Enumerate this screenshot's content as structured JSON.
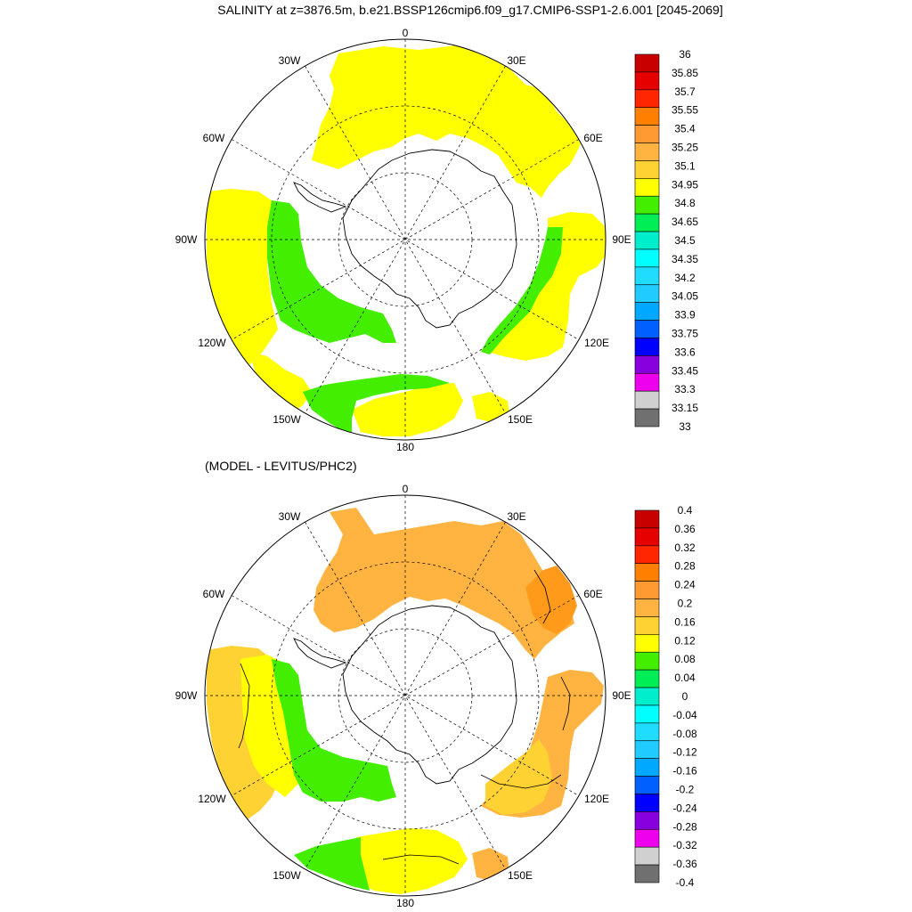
{
  "title": "SALINITY at z=3876.5m, b.e21.BSSP126cmip6.f09_g17.CMIP6-SSP1-2.6.001 [2045-2069]",
  "subtitle": "(MODEL - LEVITUS/PHC2)",
  "longitude_labels": [
    "0",
    "30E",
    "60E",
    "90E",
    "120E",
    "150E",
    "180",
    "150W",
    "120W",
    "90W",
    "60W",
    "30W"
  ],
  "colors": {
    "fill_yellow": "#ffff00",
    "fill_light_orange": "#ffb340",
    "fill_orange": "#ff9a1a",
    "fill_green": "#44ee00",
    "fill_light_yellow": "#ffd233",
    "land_outline": "#000000",
    "grid": "#000000"
  },
  "maps": [
    {
      "name": "salinity",
      "colorbar": {
        "labels": [
          "36",
          "35.85",
          "35.7",
          "35.55",
          "35.4",
          "35.25",
          "35.1",
          "34.95",
          "34.8",
          "34.65",
          "34.5",
          "34.35",
          "34.2",
          "34.05",
          "33.9",
          "33.75",
          "33.6",
          "33.45",
          "33.3",
          "33.15",
          "33"
        ],
        "colors": [
          "#c80000",
          "#e60000",
          "#ff2600",
          "#ff8000",
          "#ff9a33",
          "#ffb340",
          "#ffd233",
          "#ffff00",
          "#44ee00",
          "#00ee55",
          "#00eecc",
          "#00ffff",
          "#20ddff",
          "#20ccff",
          "#00a8ff",
          "#0060ff",
          "#0000ff",
          "#8800dd",
          "#ee00ee",
          "#d0d0d0",
          "#707070"
        ]
      }
    },
    {
      "name": "difference",
      "colorbar": {
        "labels": [
          "0.4",
          "0.36",
          "0.32",
          "0.28",
          "0.24",
          "0.2",
          "0.16",
          "0.12",
          "0.08",
          "0.04",
          "0",
          "-0.04",
          "-0.08",
          "-0.12",
          "-0.16",
          "-0.2",
          "-0.24",
          "-0.28",
          "-0.32",
          "-0.36",
          "-0.4"
        ],
        "colors": [
          "#c80000",
          "#e60000",
          "#ff2600",
          "#ff8000",
          "#ff9a33",
          "#ffb340",
          "#ffd233",
          "#ffff00",
          "#44ee00",
          "#00ee55",
          "#00eecc",
          "#00ffff",
          "#20ddff",
          "#20ccff",
          "#00a8ff",
          "#0060ff",
          "#0000ff",
          "#8800dd",
          "#ee00ee",
          "#d0d0d0",
          "#707070"
        ]
      }
    }
  ]
}
